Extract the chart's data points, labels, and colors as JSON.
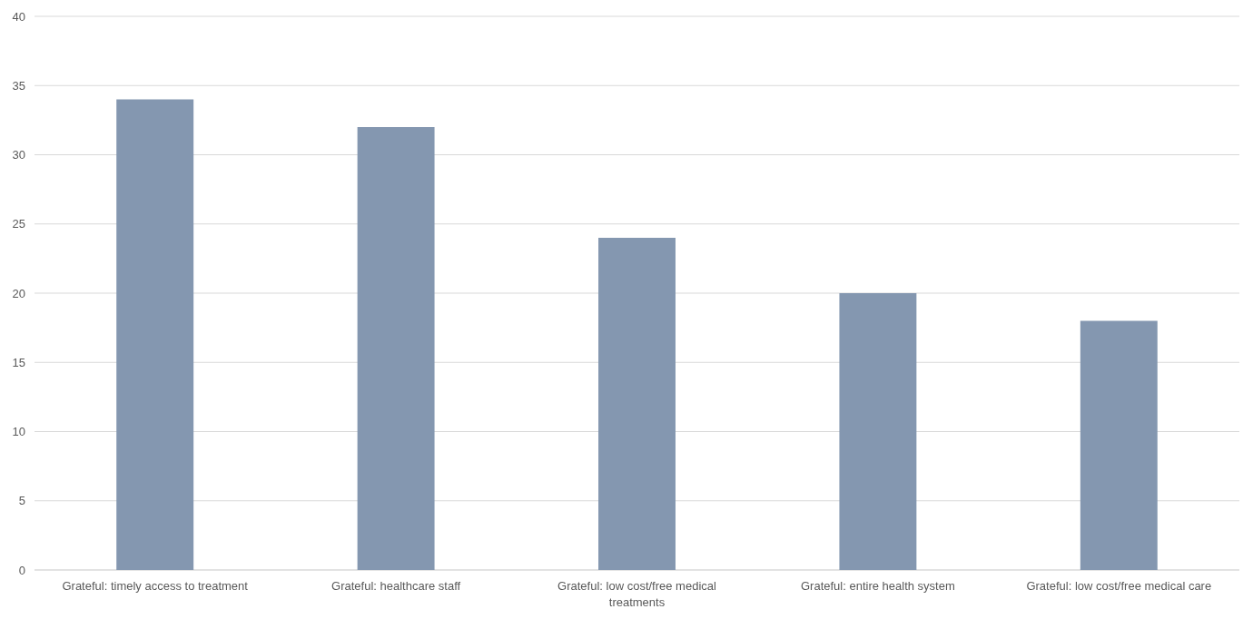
{
  "chart_data": {
    "type": "bar",
    "categories": [
      "Grateful: timely access to treatment",
      "Grateful: healthcare staff",
      "Grateful: low cost/free medical treatments",
      "Grateful: entire health system",
      "Grateful: low cost/free medical care"
    ],
    "values": [
      34,
      32,
      24,
      20,
      18
    ],
    "color": "#8497b0",
    "ylim": [
      0,
      40
    ],
    "yticks": [
      0,
      5,
      10,
      15,
      20,
      25,
      30,
      35,
      40
    ],
    "grid": "y"
  }
}
